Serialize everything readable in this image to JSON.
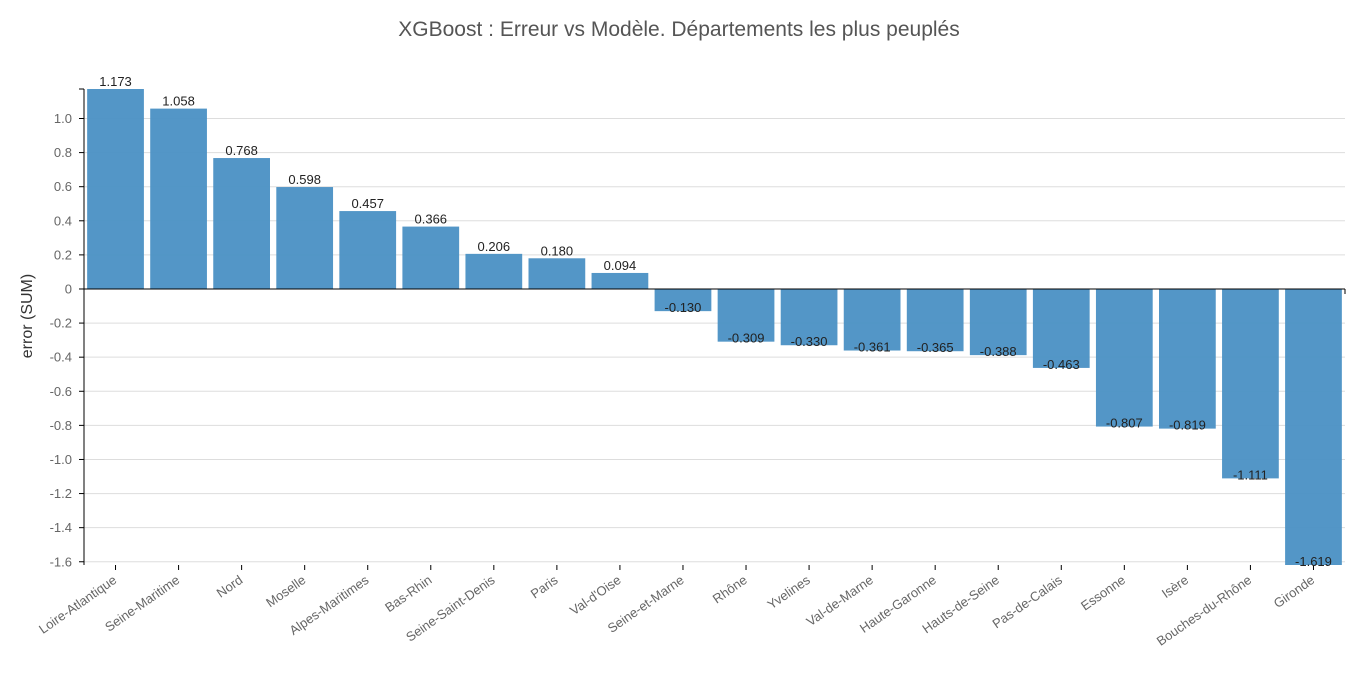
{
  "chart_data": {
    "type": "bar",
    "title": "XGBoost : Erreur vs Modèle. Départements les plus peuplés",
    "xlabel": "",
    "ylabel": "error (SUM)",
    "ylim": [
      -1.619,
      1.173
    ],
    "yticks": [
      "1.0",
      "0.8",
      "0.6",
      "0.4",
      "0.2",
      "0",
      "-0.2",
      "-0.4",
      "-0.6",
      "-0.8",
      "-1.0",
      "-1.2",
      "-1.4",
      "-1.6"
    ],
    "ytick_values": [
      1.0,
      0.8,
      0.6,
      0.4,
      0.2,
      0,
      -0.2,
      -0.4,
      -0.6,
      -0.8,
      -1.0,
      -1.2,
      -1.4,
      -1.6
    ],
    "grid": true,
    "bar_color": "#4a90c4",
    "categories": [
      "Loire-Atlantique",
      "Seine-Maritime",
      "Nord",
      "Moselle",
      "Alpes-Maritimes",
      "Bas-Rhin",
      "Seine-Saint-Denis",
      "Paris",
      "Val-d'Oise",
      "Seine-et-Marne",
      "Rhône",
      "Yvelines",
      "Val-de-Marne",
      "Haute-Garonne",
      "Hauts-de-Seine",
      "Pas-de-Calais",
      "Essonne",
      "Isère",
      "Bouches-du-Rhône",
      "Gironde"
    ],
    "values": [
      1.173,
      1.058,
      0.768,
      0.598,
      0.457,
      0.366,
      0.206,
      0.18,
      0.094,
      -0.13,
      -0.309,
      -0.33,
      -0.361,
      -0.365,
      -0.388,
      -0.463,
      -0.807,
      -0.819,
      -1.111,
      -1.619
    ],
    "value_labels": [
      "1.173",
      "1.058",
      "0.768",
      "0.598",
      "0.457",
      "0.366",
      "0.206",
      "0.180",
      "0.094",
      "-0.130",
      "-0.309",
      "-0.330",
      "-0.361",
      "-0.365",
      "-0.388",
      "-0.463",
      "-0.807",
      "-0.819",
      "-1.111",
      "-1.619"
    ]
  }
}
